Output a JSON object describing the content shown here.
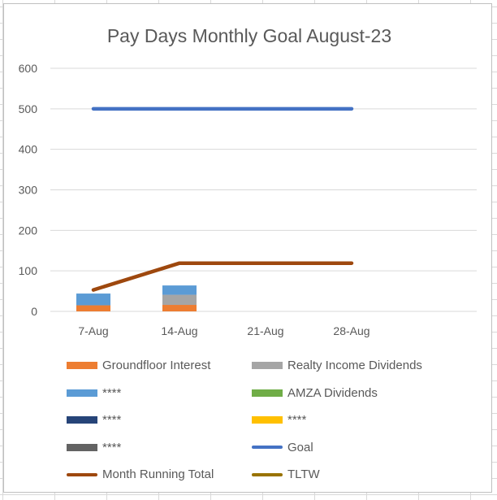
{
  "chart_data": {
    "type": "bar+line",
    "title": "Pay Days Monthly Goal August-23",
    "categories": [
      "7-Aug",
      "14-Aug",
      "21-Aug",
      "28-Aug"
    ],
    "ylim": [
      0,
      600
    ],
    "yticks": [
      0,
      100,
      200,
      300,
      400,
      500,
      600
    ],
    "grid": true,
    "legend_position": "bottom",
    "stacked_series": [
      {
        "name": "Groundfloor Interest",
        "color": "#ed7d31",
        "values": [
          15,
          16,
          0,
          0
        ]
      },
      {
        "name": "Realty Income Dividends",
        "color": "#a5a5a5",
        "values": [
          0,
          25,
          0,
          0
        ]
      },
      {
        "name": "****",
        "color": "#5b9bd5",
        "values": [
          29,
          23,
          0,
          0
        ]
      },
      {
        "name": "AMZA Dividends",
        "color": "#70ad47",
        "values": [
          0,
          0,
          0,
          0
        ]
      },
      {
        "name": "****",
        "color": "#264478",
        "values": [
          0,
          0,
          0,
          0
        ]
      },
      {
        "name": "****",
        "color": "#ffc000",
        "values": [
          0,
          0,
          0,
          0
        ]
      },
      {
        "name": "****",
        "color": "#636363",
        "values": [
          0,
          0,
          0,
          0
        ]
      }
    ],
    "line_series": [
      {
        "name": "Goal",
        "color": "#4472c4",
        "values": [
          500,
          500,
          500,
          500
        ]
      },
      {
        "name": "Month Running Total",
        "color": "#9e480e",
        "values": [
          53,
          119,
          119,
          119
        ]
      },
      {
        "name": "TLTW",
        "color": "#997300",
        "values": []
      }
    ],
    "legend": [
      {
        "name": "Groundfloor Interest",
        "color": "#ed7d31",
        "kind": "box"
      },
      {
        "name": "Realty Income Dividends",
        "color": "#a5a5a5",
        "kind": "box"
      },
      {
        "name": "****",
        "color": "#5b9bd5",
        "kind": "box"
      },
      {
        "name": "AMZA Dividends",
        "color": "#70ad47",
        "kind": "box"
      },
      {
        "name": "****",
        "color": "#264478",
        "kind": "box"
      },
      {
        "name": "****",
        "color": "#ffc000",
        "kind": "box"
      },
      {
        "name": "****",
        "color": "#636363",
        "kind": "box"
      },
      {
        "name": "Goal",
        "color": "#4472c4",
        "kind": "line"
      },
      {
        "name": "Month Running Total",
        "color": "#9e480e",
        "kind": "line"
      },
      {
        "name": "TLTW",
        "color": "#997300",
        "kind": "line"
      }
    ]
  }
}
